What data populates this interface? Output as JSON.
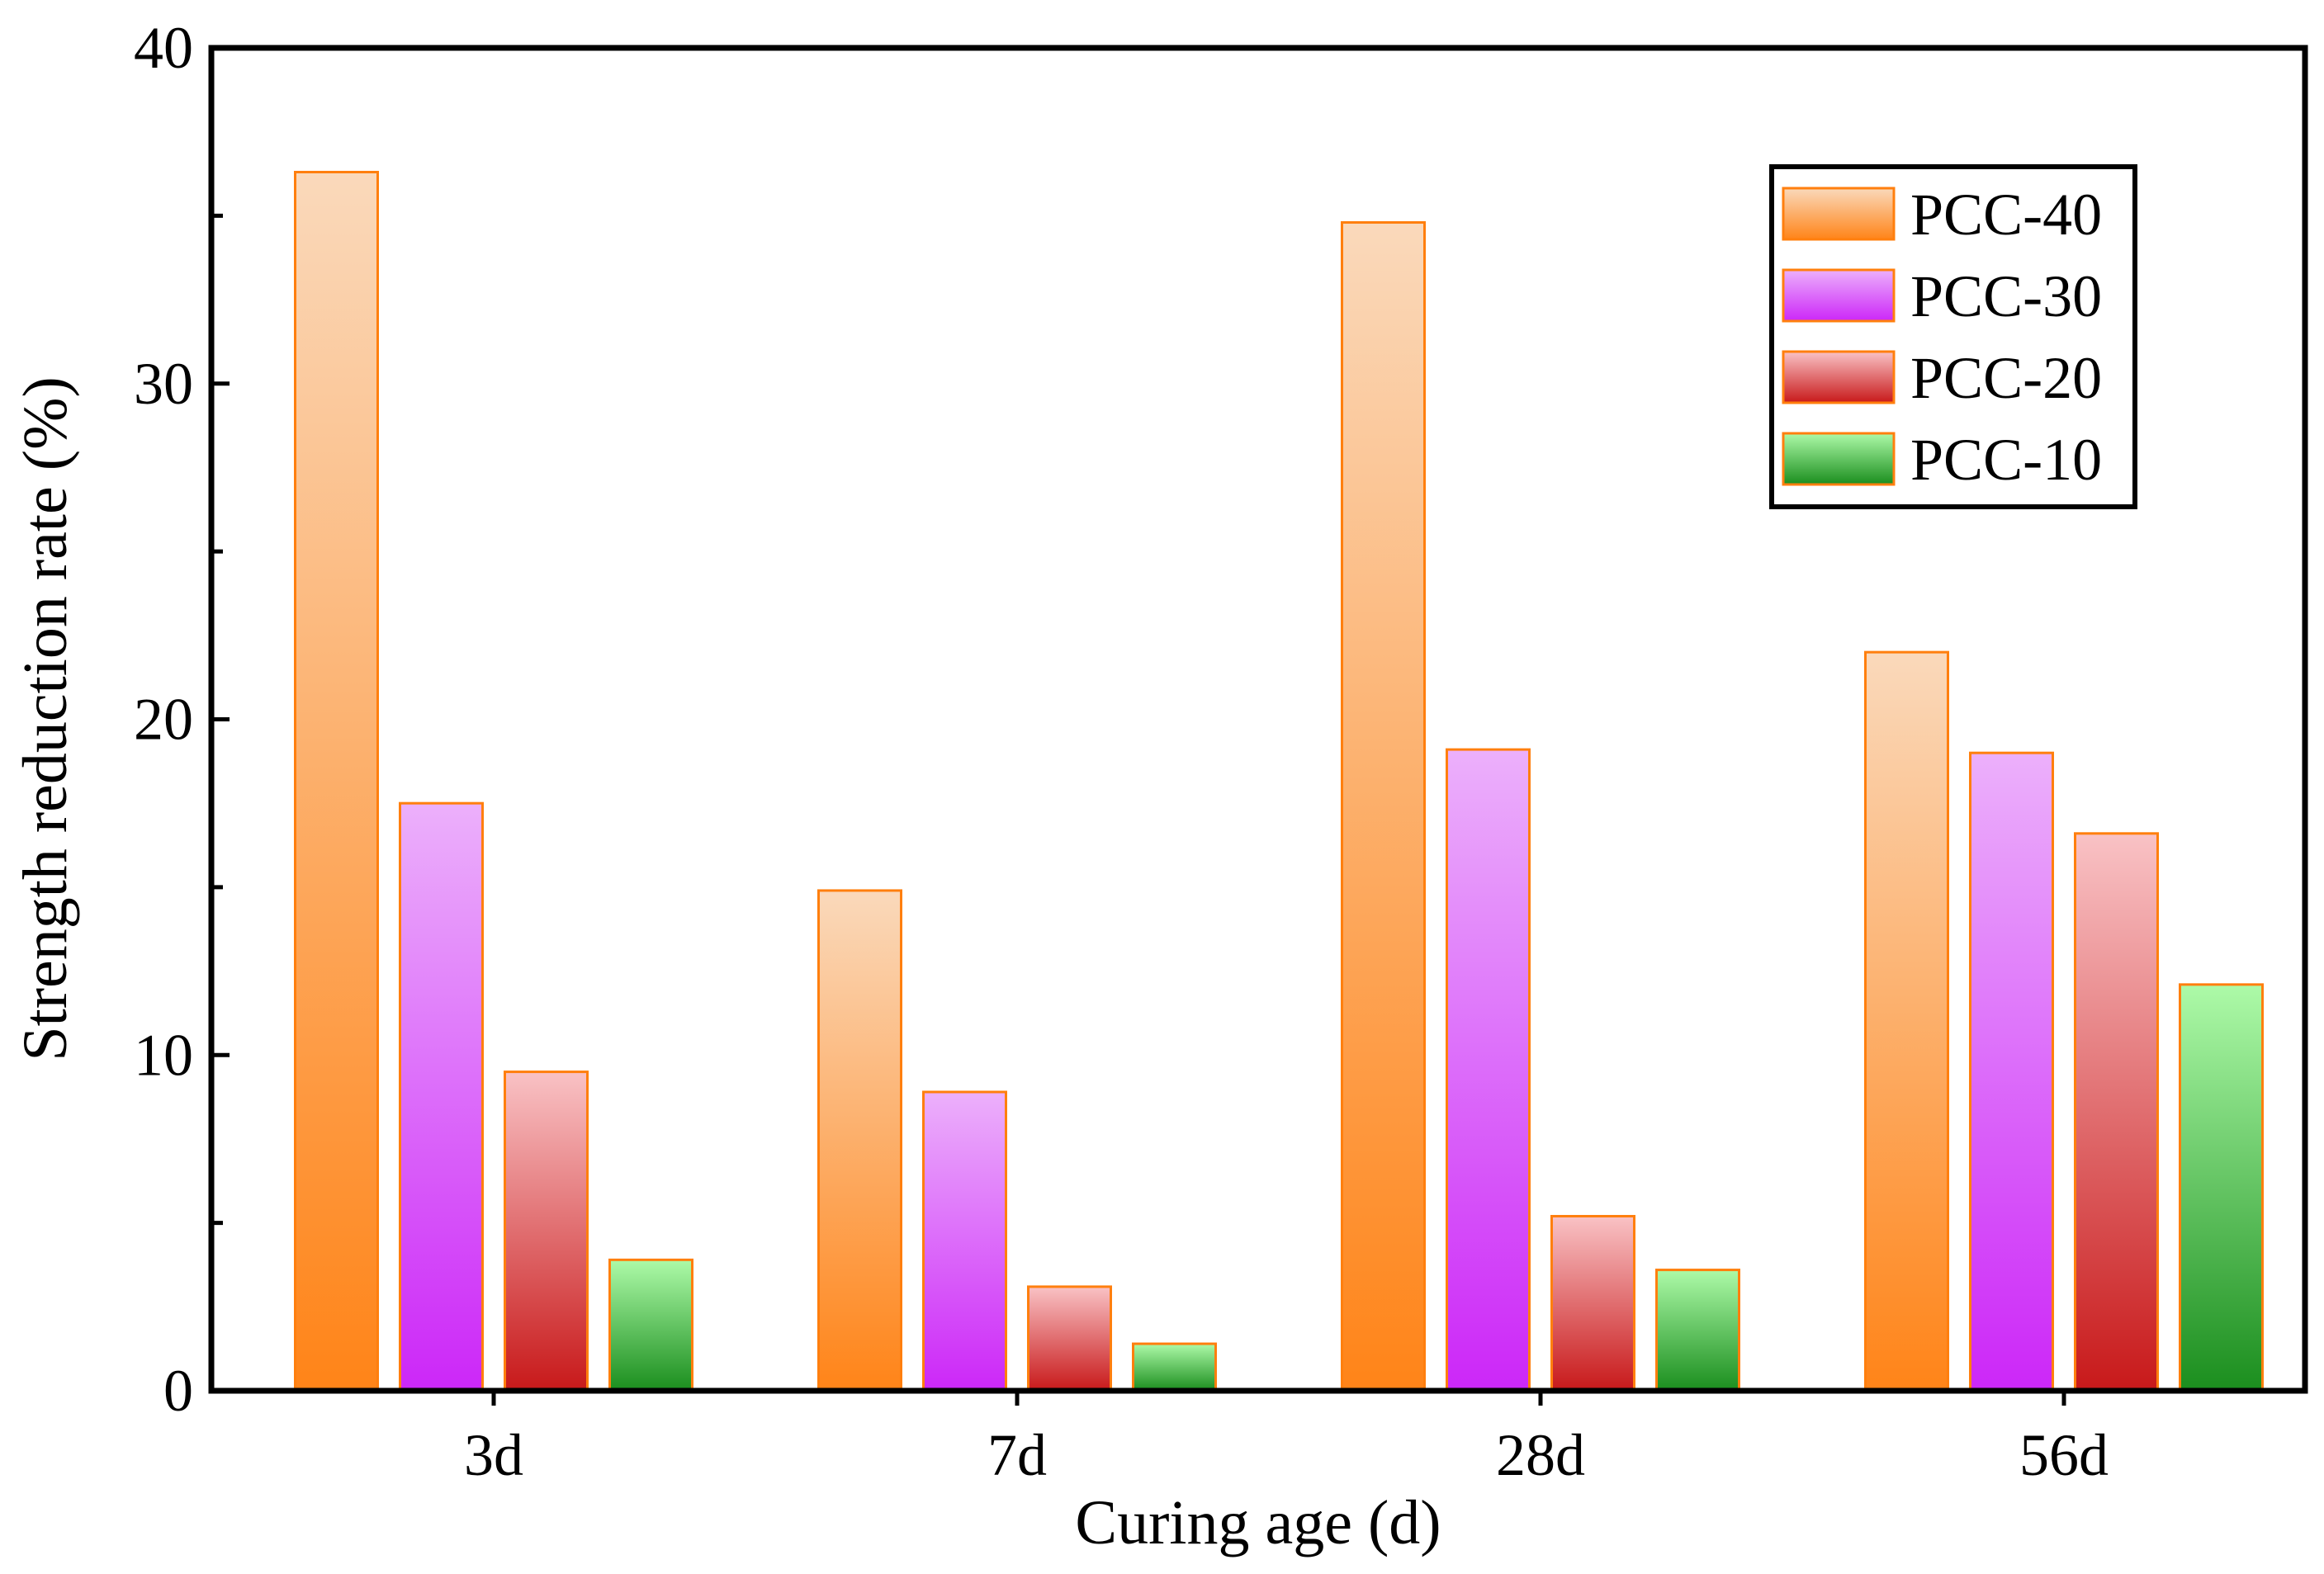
{
  "chart_data": {
    "type": "bar",
    "title": "",
    "xlabel": "Curing age (d)",
    "ylabel": "Strength reduction rate (%)",
    "ylim": [
      0,
      40
    ],
    "yticks": [
      "0",
      "10",
      "20",
      "30",
      "40"
    ],
    "categories": [
      "3d",
      "7d",
      "28d",
      "56d"
    ],
    "legend_position": "top-right",
    "series": [
      {
        "name": "PCC-40",
        "values": [
          36.3,
          14.9,
          34.8,
          22.0
        ],
        "color_top": "#fad9bb",
        "color_bottom": "#ff8418",
        "edge": "#ff7f0e"
      },
      {
        "name": "PCC-30",
        "values": [
          17.5,
          8.9,
          19.1,
          19.0
        ],
        "color_top": "#ecb0fb",
        "color_bottom": "#cc27f8",
        "edge": "#ff7f0e"
      },
      {
        "name": "PCC-20",
        "values": [
          9.5,
          3.1,
          5.2,
          16.6
        ],
        "color_top": "#f9c2c5",
        "color_bottom": "#c8191a",
        "edge": "#ff7f0e"
      },
      {
        "name": "PCC-10",
        "values": [
          3.9,
          1.4,
          3.6,
          12.1
        ],
        "color_top": "#adfaa8",
        "color_bottom": "#1b8e1e",
        "color_top_alt": "#dff5b8",
        "edge": "#ff7f0e"
      }
    ]
  }
}
